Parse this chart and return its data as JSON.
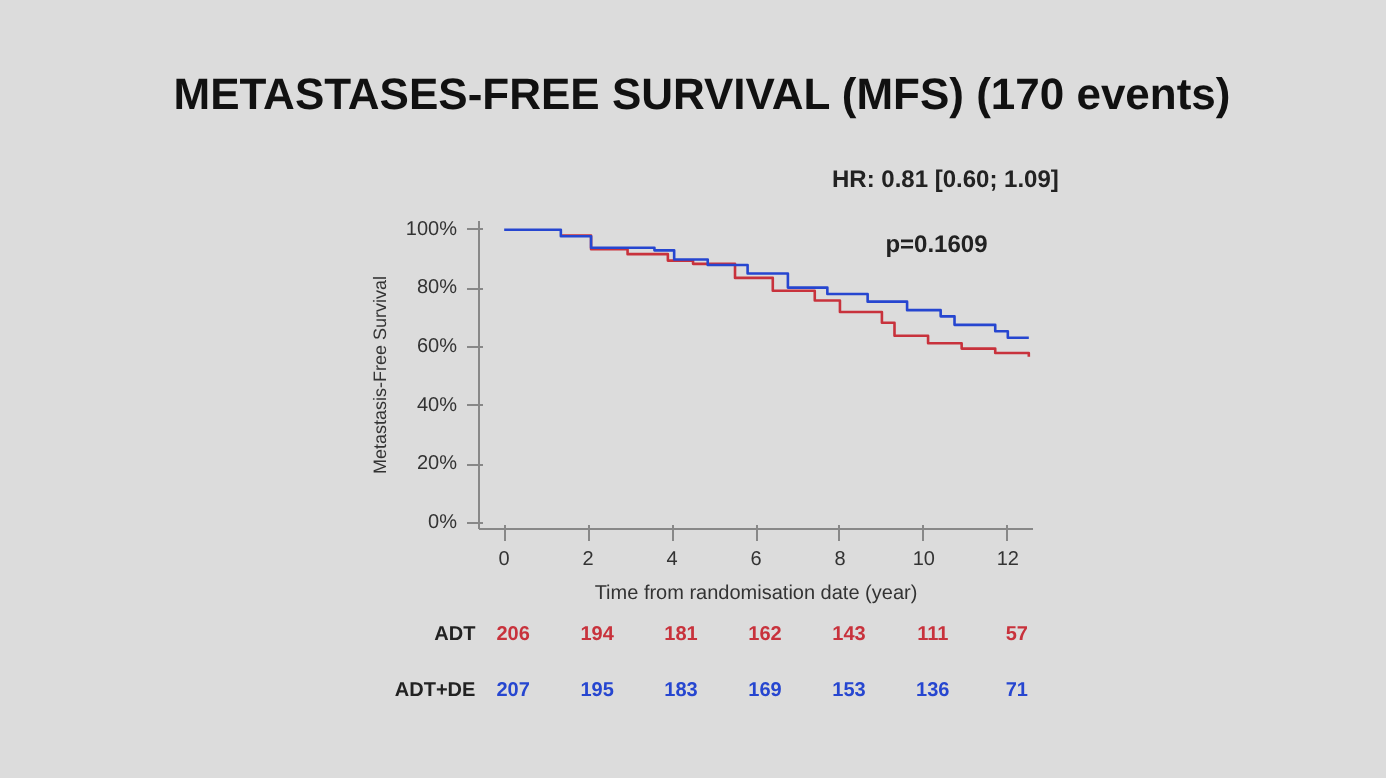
{
  "chart_data": {
    "type": "step",
    "title": "METASTASES-FREE SURVIVAL (MFS) (170 events)",
    "xlabel": "Time from randomisation date (year)",
    "ylabel": "Metastasis-Free Survival",
    "xlim": [
      -0.6,
      12.6
    ],
    "ylim": [
      -2,
      103
    ],
    "xticks": [
      0,
      2,
      4,
      6,
      8,
      10,
      12
    ],
    "yticks": [
      {
        "value": 0,
        "label": "0%"
      },
      {
        "value": 20,
        "label": "20%"
      },
      {
        "value": 40,
        "label": "40%"
      },
      {
        "value": 60,
        "label": "60%"
      },
      {
        "value": 80,
        "label": "80%"
      },
      {
        "value": 100,
        "label": "100%"
      }
    ],
    "series": [
      {
        "color": "#c8323c",
        "x": [
          1.35,
          2.07,
          2.94,
          3.9,
          4.5,
          5.5,
          6.4,
          7.4,
          8.0,
          9.0,
          9.3,
          10.1,
          10.9,
          11.7,
          12.5
        ],
        "values": [
          98,
          93.4,
          91.7,
          89.5,
          88.4,
          83.6,
          79.2,
          75.9,
          72,
          68.3,
          63.9,
          61.3,
          59.5,
          58,
          56.7
        ]
      },
      {
        "color": "#2646d0",
        "x": [
          0,
          1.35,
          2.07,
          3.58,
          4.05,
          4.85,
          5.8,
          6.76,
          7.7,
          8.66,
          9.6,
          10.4,
          10.73,
          11.7,
          12.0,
          12.5
        ],
        "values": [
          100,
          97.8,
          93.9,
          93,
          89.9,
          88,
          85.1,
          80.3,
          78.1,
          75.5,
          72.6,
          70.5,
          67.6,
          65.4,
          63.2,
          63.2
        ]
      }
    ],
    "annotations": [
      "HR: 0.81 [0.60; 1.09]",
      "p=0.1609",
      "ADT",
      "ADT+DE",
      "206",
      "194",
      "181",
      "162",
      "143",
      "111",
      "57",
      "207",
      "195",
      "183",
      "169",
      "153",
      "136",
      "71"
    ]
  }
}
